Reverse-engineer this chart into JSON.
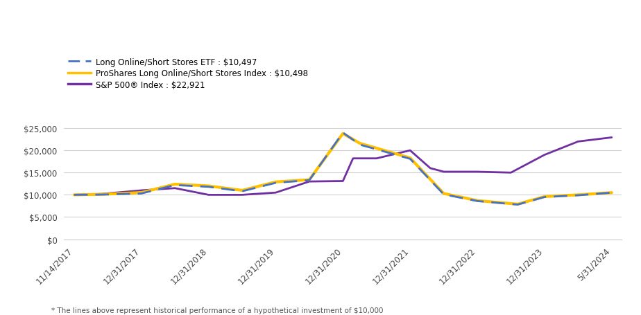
{
  "footnote": "* The lines above represent historical performance of a hypothetical investment of $10,000",
  "legend": [
    {
      "label": "Long Online/Short Stores ETF : $10,497",
      "color": "#4472C4",
      "style": "dashed"
    },
    {
      "label": "ProShares Long Online/Short Stores Index : $10,498",
      "color": "#FFC000",
      "style": "solid"
    },
    {
      "label": "S&P 500® Index : $22,921",
      "color": "#7030A0",
      "style": "solid"
    }
  ],
  "x_labels": [
    "11/14/2017",
    "12/31/2017",
    "12/31/2018",
    "12/31/2019",
    "12/31/2020",
    "12/31/2021",
    "12/31/2022",
    "12/31/2023",
    "5/31/2024"
  ],
  "etf_x": [
    0,
    0.4,
    1,
    1.5,
    2,
    2.5,
    3,
    3.5,
    4,
    4.25,
    5,
    5.5,
    6,
    6.3,
    6.6,
    7,
    7.5,
    8
  ],
  "etf_y": [
    10000,
    10050,
    10300,
    12200,
    11800,
    10800,
    12700,
    13300,
    24000,
    21300,
    18100,
    10100,
    8600,
    8200,
    7800,
    9500,
    9900,
    10497
  ],
  "idx_x": [
    0,
    0.4,
    1,
    1.5,
    2,
    2.5,
    3,
    3.5,
    4,
    4.25,
    5,
    5.5,
    6,
    6.3,
    6.6,
    7,
    7.5,
    8
  ],
  "idx_y": [
    10000,
    10100,
    10500,
    12400,
    12000,
    11000,
    12900,
    13400,
    23800,
    21600,
    18300,
    10300,
    8700,
    8300,
    7900,
    9600,
    10000,
    10498
  ],
  "sp_x": [
    0,
    0.4,
    1,
    1.5,
    2,
    2.5,
    3,
    3.5,
    4,
    4.15,
    4.5,
    5,
    5.3,
    5.5,
    6,
    6.5,
    7,
    7.5,
    8
  ],
  "sp_y": [
    10000,
    10200,
    11000,
    11500,
    10000,
    10000,
    10500,
    13000,
    13100,
    18200,
    18200,
    20000,
    16000,
    15200,
    15200,
    15000,
    19000,
    22000,
    22921
  ],
  "ylim": [
    0,
    27000
  ],
  "yticks": [
    0,
    5000,
    10000,
    15000,
    20000,
    25000
  ],
  "background_color": "#ffffff",
  "etf_color": "#4472C4",
  "index_color": "#FFC000",
  "sp500_color": "#7030A0"
}
